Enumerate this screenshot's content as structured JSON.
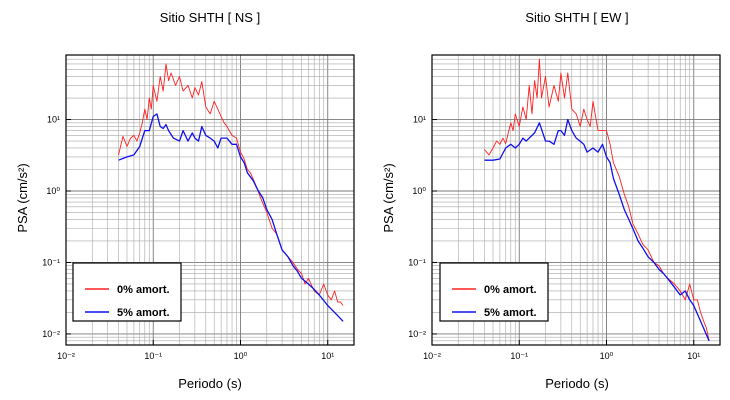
{
  "legend": {
    "items": [
      {
        "label": "0% amort.",
        "color": "#ff2020"
      },
      {
        "label": "5% amort.",
        "color": "#1010ee"
      }
    ]
  },
  "chart_data": [
    {
      "type": "line",
      "title": "Sitio SHTH [ NS ]",
      "xlabel": "Periodo (s)",
      "ylabel": "PSA (cm/s²)",
      "x_scale": "log",
      "y_scale": "log",
      "xlim": [
        0.01,
        20
      ],
      "ylim": [
        0.007,
        80
      ],
      "x_ticks": [
        0.01,
        0.1,
        1,
        10
      ],
      "x_tick_labels": [
        "10⁻²",
        "10⁻¹",
        "10⁰",
        "10¹"
      ],
      "y_ticks": [
        0.01,
        0.1,
        1,
        10
      ],
      "y_tick_labels": [
        "10⁻²",
        "10⁻¹",
        "10⁰",
        "10¹"
      ],
      "grid": true,
      "legend_position": "bottom-left",
      "series": [
        {
          "name": "0% amort.",
          "color": "#ff2020",
          "x": [
            0.04,
            0.045,
            0.05,
            0.055,
            0.06,
            0.065,
            0.07,
            0.075,
            0.08,
            0.085,
            0.09,
            0.095,
            0.1,
            0.11,
            0.12,
            0.13,
            0.14,
            0.15,
            0.16,
            0.18,
            0.2,
            0.22,
            0.25,
            0.28,
            0.3,
            0.33,
            0.36,
            0.4,
            0.45,
            0.5,
            0.55,
            0.6,
            0.65,
            0.7,
            0.8,
            0.9,
            1.0,
            1.1,
            1.2,
            1.3,
            1.5,
            1.7,
            2.0,
            2.3,
            2.6,
            3.0,
            3.5,
            4.0,
            4.5,
            5.0,
            5.5,
            6.0,
            7.0,
            8.0,
            9.0,
            10.0,
            11.0,
            12.0,
            13.0,
            14.0,
            15.0
          ],
          "y": [
            3.2,
            5.8,
            4.2,
            5.5,
            6.0,
            5.0,
            6.5,
            9.0,
            14.0,
            10.0,
            20.0,
            14.0,
            30.0,
            18.0,
            40.0,
            25.0,
            60.0,
            35.0,
            45.0,
            30.0,
            40.0,
            25.0,
            30.0,
            20.0,
            28.0,
            22.0,
            34.0,
            15.0,
            12.0,
            18.0,
            14.0,
            11.0,
            9.0,
            8.0,
            6.0,
            5.5,
            3.5,
            2.8,
            2.0,
            1.8,
            1.2,
            0.8,
            0.5,
            0.3,
            0.25,
            0.15,
            0.12,
            0.1,
            0.08,
            0.07,
            0.05,
            0.06,
            0.04,
            0.035,
            0.05,
            0.035,
            0.03,
            0.04,
            0.028,
            0.028,
            0.025
          ]
        },
        {
          "name": "5% amort.",
          "color": "#1010ee",
          "x": [
            0.04,
            0.05,
            0.06,
            0.07,
            0.08,
            0.09,
            0.1,
            0.11,
            0.12,
            0.13,
            0.14,
            0.15,
            0.17,
            0.2,
            0.22,
            0.25,
            0.28,
            0.3,
            0.33,
            0.36,
            0.4,
            0.45,
            0.5,
            0.55,
            0.6,
            0.7,
            0.8,
            0.9,
            1.0,
            1.1,
            1.2,
            1.4,
            1.6,
            1.8,
            2.0,
            2.3,
            2.6,
            3.0,
            3.5,
            4.0,
            4.5,
            5.0,
            6.0,
            7.0,
            8.0,
            10.0,
            12.0,
            15.0
          ],
          "y": [
            2.7,
            3.0,
            3.2,
            4.2,
            7.0,
            7.0,
            11.0,
            12.0,
            8.0,
            7.5,
            8.5,
            7.0,
            5.5,
            5.0,
            7.0,
            5.0,
            6.5,
            5.5,
            5.0,
            8.0,
            6.0,
            5.5,
            5.0,
            4.0,
            5.5,
            5.5,
            4.5,
            4.5,
            3.0,
            2.5,
            1.8,
            1.4,
            1.0,
            0.8,
            0.55,
            0.4,
            0.25,
            0.15,
            0.12,
            0.09,
            0.075,
            0.06,
            0.05,
            0.042,
            0.035,
            0.025,
            0.02,
            0.015
          ]
        }
      ]
    },
    {
      "type": "line",
      "title": "Sitio SHTH [ EW ]",
      "xlabel": "Periodo (s)",
      "ylabel": "PSA (cm/s²)",
      "x_scale": "log",
      "y_scale": "log",
      "xlim": [
        0.01,
        20
      ],
      "ylim": [
        0.007,
        80
      ],
      "x_ticks": [
        0.01,
        0.1,
        1,
        10
      ],
      "x_tick_labels": [
        "10⁻²",
        "10⁻¹",
        "10⁰",
        "10¹"
      ],
      "y_ticks": [
        0.01,
        0.1,
        1,
        10
      ],
      "y_tick_labels": [
        "10⁻²",
        "10⁻¹",
        "10⁰",
        "10¹"
      ],
      "grid": true,
      "legend_position": "bottom-left",
      "series": [
        {
          "name": "0% amort.",
          "color": "#ff2020",
          "x": [
            0.04,
            0.045,
            0.05,
            0.055,
            0.06,
            0.065,
            0.07,
            0.075,
            0.08,
            0.085,
            0.09,
            0.1,
            0.11,
            0.12,
            0.13,
            0.14,
            0.15,
            0.16,
            0.17,
            0.18,
            0.2,
            0.22,
            0.25,
            0.28,
            0.3,
            0.33,
            0.36,
            0.4,
            0.45,
            0.5,
            0.55,
            0.6,
            0.65,
            0.7,
            0.8,
            0.9,
            1.0,
            1.1,
            1.2,
            1.4,
            1.6,
            1.8,
            2.0,
            2.3,
            2.6,
            3.0,
            3.5,
            4.0,
            4.5,
            5.0,
            5.5,
            6.0,
            7.0,
            8.0,
            9.0,
            10.0,
            11.0,
            12.0,
            13.0,
            14.0,
            15.0
          ],
          "y": [
            3.8,
            3.2,
            4.0,
            5.0,
            4.5,
            5.5,
            4.6,
            6.5,
            9.0,
            7.0,
            12.0,
            8.0,
            15.0,
            10.0,
            30.0,
            12.0,
            35.0,
            20.0,
            70.0,
            20.0,
            40.0,
            15.0,
            30.0,
            18.0,
            45.0,
            20.0,
            45.0,
            14.0,
            12.0,
            8.0,
            14.0,
            10.0,
            8.0,
            18.0,
            7.0,
            7.0,
            7.0,
            4.5,
            2.5,
            1.6,
            0.9,
            0.6,
            0.35,
            0.25,
            0.18,
            0.15,
            0.1,
            0.09,
            0.07,
            0.06,
            0.055,
            0.05,
            0.04,
            0.03,
            0.05,
            0.03,
            0.03,
            0.02,
            0.015,
            0.012,
            0.008
          ]
        },
        {
          "name": "5% amort.",
          "color": "#1010ee",
          "x": [
            0.04,
            0.05,
            0.06,
            0.07,
            0.08,
            0.09,
            0.1,
            0.11,
            0.12,
            0.13,
            0.14,
            0.15,
            0.17,
            0.2,
            0.22,
            0.25,
            0.28,
            0.3,
            0.33,
            0.36,
            0.4,
            0.45,
            0.5,
            0.55,
            0.6,
            0.7,
            0.8,
            0.9,
            1.0,
            1.1,
            1.2,
            1.4,
            1.6,
            1.8,
            2.0,
            2.3,
            2.6,
            3.0,
            3.5,
            4.0,
            4.5,
            5.0,
            6.0,
            7.0,
            8.0,
            9.0,
            10.0,
            12.0,
            15.0
          ],
          "y": [
            2.7,
            2.7,
            2.8,
            4.0,
            4.5,
            4.0,
            4.5,
            5.5,
            5.0,
            5.5,
            6.0,
            6.5,
            9.0,
            5.0,
            5.0,
            4.5,
            7.0,
            7.0,
            6.0,
            10.0,
            7.0,
            5.5,
            5.0,
            4.5,
            3.5,
            4.0,
            3.5,
            4.5,
            3.0,
            2.5,
            1.5,
            0.9,
            0.55,
            0.4,
            0.3,
            0.2,
            0.16,
            0.12,
            0.1,
            0.08,
            0.07,
            0.06,
            0.045,
            0.035,
            0.04,
            0.03,
            0.025,
            0.015,
            0.008
          ]
        }
      ]
    }
  ]
}
